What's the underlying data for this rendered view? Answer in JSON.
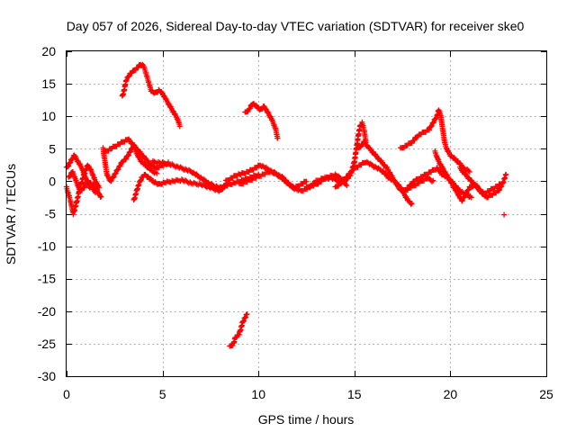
{
  "chart_data": {
    "type": "scatter",
    "title": "Day 057 of 2026, Sidereal Day-to-day VTEC variation (SDTVAR) for receiver ske0",
    "xlabel": "GPS time / hours",
    "ylabel": "SDTVAR / TECUs",
    "xlim": [
      0,
      25
    ],
    "ylim": [
      -30,
      20
    ],
    "xticks": [
      0,
      5,
      10,
      15,
      20,
      25
    ],
    "yticks": [
      -30,
      -25,
      -20,
      -15,
      -10,
      -5,
      0,
      5,
      10,
      15,
      20
    ],
    "xtick_labels": [
      "0",
      "5",
      "10",
      "15",
      "20",
      "25"
    ],
    "ytick_labels": [
      "-30",
      "-25",
      "-20",
      "-15",
      "-10",
      "-5",
      "0",
      "5",
      "10",
      "15",
      "20"
    ],
    "grid": true,
    "marker": "+",
    "color": "#ff0000",
    "series": [
      {
        "name": "SDTVAR",
        "tracks": [
          [
            [
              0.0,
              2.0
            ],
            [
              0.2,
              3.0
            ],
            [
              0.4,
              4.0
            ],
            [
              0.6,
              3.0
            ],
            [
              0.8,
              2.0
            ],
            [
              1.0,
              0.5
            ],
            [
              1.2,
              -1.0
            ],
            [
              1.4,
              -0.5
            ],
            [
              1.6,
              -1.5
            ],
            [
              1.8,
              -2.5
            ]
          ],
          [
            [
              0.0,
              -1.0
            ],
            [
              0.2,
              -3.0
            ],
            [
              0.35,
              -5.0
            ],
            [
              0.5,
              -3.5
            ],
            [
              0.7,
              -1.0
            ],
            [
              0.9,
              1.0
            ],
            [
              1.1,
              2.5
            ],
            [
              1.3,
              1.5
            ],
            [
              1.5,
              0.0
            ],
            [
              1.7,
              -1.0
            ]
          ],
          [
            [
              0.1,
              0.5
            ],
            [
              0.3,
              1.5
            ],
            [
              0.5,
              0.0
            ],
            [
              0.7,
              -1.5
            ],
            [
              0.9,
              -1.0
            ],
            [
              1.1,
              0.0
            ],
            [
              1.3,
              -0.5
            ],
            [
              1.5,
              -1.8
            ]
          ],
          [
            [
              1.9,
              5.0
            ],
            [
              2.0,
              3.0
            ],
            [
              2.1,
              1.0
            ],
            [
              2.3,
              0.0
            ],
            [
              2.5,
              1.0
            ],
            [
              2.7,
              2.0
            ],
            [
              2.9,
              3.0
            ],
            [
              3.1,
              3.5
            ],
            [
              3.3,
              4.5
            ],
            [
              3.5,
              5.5
            ],
            [
              3.7,
              4.0
            ],
            [
              3.9,
              3.0
            ],
            [
              4.1,
              2.5
            ],
            [
              4.3,
              2.0
            ],
            [
              4.5,
              1.5
            ],
            [
              4.7,
              1.2
            ]
          ],
          [
            [
              2.0,
              4.5
            ],
            [
              2.3,
              5.0
            ],
            [
              2.6,
              5.5
            ],
            [
              2.9,
              6.0
            ],
            [
              3.2,
              6.5
            ],
            [
              3.5,
              5.5
            ],
            [
              3.8,
              4.5
            ],
            [
              4.1,
              3.5
            ],
            [
              4.4,
              2.5
            ],
            [
              4.7,
              2.0
            ],
            [
              5.0,
              2.5
            ],
            [
              5.3,
              2.8
            ]
          ],
          [
            [
              3.5,
              -3.0
            ],
            [
              3.7,
              -1.0
            ],
            [
              3.9,
              0.5
            ],
            [
              4.1,
              1.0
            ],
            [
              4.3,
              0.5
            ],
            [
              4.5,
              0.0
            ],
            [
              4.8,
              -0.5
            ],
            [
              5.1,
              -0.2
            ],
            [
              5.5,
              0.0
            ],
            [
              6.0,
              0.2
            ],
            [
              6.5,
              -0.3
            ],
            [
              7.0,
              -0.5
            ],
            [
              7.5,
              -1.0
            ],
            [
              8.0,
              -1.5
            ],
            [
              8.3,
              -0.5
            ]
          ],
          [
            [
              4.5,
              3.0
            ],
            [
              5.0,
              2.8
            ],
            [
              5.5,
              2.5
            ],
            [
              6.0,
              2.0
            ],
            [
              6.5,
              1.5
            ],
            [
              7.0,
              0.5
            ],
            [
              7.5,
              -0.5
            ],
            [
              8.0,
              -1.0
            ],
            [
              8.5,
              -0.5
            ],
            [
              9.0,
              0.0
            ],
            [
              9.5,
              0.5
            ],
            [
              10.0,
              1.0
            ]
          ],
          [
            [
              8.3,
              0.0
            ],
            [
              8.6,
              0.5
            ],
            [
              8.9,
              1.0
            ],
            [
              9.2,
              1.2
            ],
            [
              9.5,
              1.5
            ],
            [
              9.8,
              2.0
            ],
            [
              10.1,
              2.5
            ],
            [
              10.4,
              2.0
            ],
            [
              10.7,
              1.5
            ],
            [
              11.0,
              1.0
            ],
            [
              11.3,
              0.5
            ],
            [
              11.6,
              -0.5
            ],
            [
              11.9,
              -1.0
            ],
            [
              12.2,
              -0.5
            ],
            [
              12.5,
              0.0
            ]
          ],
          [
            [
              9.0,
              -0.5
            ],
            [
              9.4,
              0.0
            ],
            [
              9.8,
              0.5
            ],
            [
              10.2,
              1.0
            ],
            [
              10.6,
              1.5
            ],
            [
              11.0,
              1.0
            ],
            [
              11.4,
              0.0
            ],
            [
              11.8,
              -1.0
            ],
            [
              12.2,
              -1.5
            ],
            [
              12.6,
              -1.0
            ],
            [
              13.0,
              0.0
            ],
            [
              13.4,
              0.5
            ],
            [
              13.8,
              0.5
            ],
            [
              14.2,
              0.0
            ],
            [
              14.6,
              -0.5
            ]
          ],
          [
            [
              12.5,
              -1.0
            ],
            [
              13.0,
              -0.5
            ],
            [
              13.5,
              0.5
            ],
            [
              14.0,
              1.0
            ],
            [
              14.5,
              0.0
            ],
            [
              14.8,
              1.0
            ],
            [
              15.0,
              3.0
            ],
            [
              15.1,
              5.0
            ],
            [
              15.2,
              7.0
            ],
            [
              15.3,
              8.5
            ],
            [
              15.4,
              9.0
            ],
            [
              15.5,
              8.0
            ],
            [
              15.6,
              6.0
            ]
          ],
          [
            [
              14.0,
              -1.0
            ],
            [
              14.4,
              0.0
            ],
            [
              14.7,
              1.0
            ],
            [
              15.0,
              2.0
            ],
            [
              15.3,
              2.5
            ],
            [
              15.6,
              3.0
            ],
            [
              15.9,
              2.5
            ],
            [
              16.2,
              2.0
            ],
            [
              16.5,
              1.5
            ],
            [
              16.8,
              0.5
            ],
            [
              17.1,
              0.0
            ],
            [
              17.4,
              -1.0
            ],
            [
              17.6,
              -2.0
            ],
            [
              17.8,
              -3.0
            ],
            [
              18.0,
              -3.5
            ]
          ],
          [
            [
              15.2,
              5.0
            ],
            [
              15.5,
              6.0
            ],
            [
              15.8,
              5.0
            ],
            [
              16.1,
              4.0
            ],
            [
              16.4,
              3.0
            ],
            [
              16.7,
              2.0
            ],
            [
              17.0,
              0.5
            ],
            [
              17.3,
              -1.0
            ],
            [
              17.6,
              -1.5
            ],
            [
              17.9,
              -1.0
            ],
            [
              18.2,
              -0.5
            ],
            [
              18.5,
              0.0
            ],
            [
              18.8,
              0.5
            ],
            [
              19.1,
              0.0
            ]
          ],
          [
            [
              17.4,
              5.0
            ],
            [
              17.7,
              5.5
            ],
            [
              18.0,
              6.0
            ],
            [
              18.3,
              7.0
            ],
            [
              18.6,
              7.5
            ],
            [
              18.9,
              8.0
            ],
            [
              19.1,
              9.0
            ],
            [
              19.3,
              10.0
            ],
            [
              19.4,
              11.0
            ],
            [
              19.5,
              10.0
            ],
            [
              19.6,
              8.0
            ],
            [
              19.7,
              6.0
            ],
            [
              19.8,
              5.0
            ],
            [
              20.0,
              4.0
            ],
            [
              20.2,
              3.5
            ],
            [
              20.4,
              3.0
            ],
            [
              20.7,
              2.0
            ],
            [
              21.0,
              1.5
            ]
          ],
          [
            [
              17.5,
              -1.5
            ],
            [
              17.8,
              -1.0
            ],
            [
              18.1,
              0.0
            ],
            [
              18.4,
              0.5
            ],
            [
              18.7,
              1.0
            ],
            [
              19.0,
              1.5
            ],
            [
              19.3,
              2.0
            ],
            [
              19.6,
              1.0
            ],
            [
              19.9,
              0.5
            ],
            [
              20.2,
              -0.5
            ],
            [
              20.5,
              -1.5
            ],
            [
              20.8,
              -2.0
            ],
            [
              21.1,
              -2.5
            ]
          ],
          [
            [
              19.2,
              4.5
            ],
            [
              19.4,
              3.0
            ],
            [
              19.6,
              2.0
            ],
            [
              19.8,
              1.0
            ],
            [
              20.0,
              0.0
            ],
            [
              20.2,
              -1.0
            ],
            [
              20.4,
              -2.0
            ],
            [
              20.6,
              -3.0
            ],
            [
              20.8,
              -2.0
            ],
            [
              21.0,
              -1.0
            ],
            [
              21.3,
              -0.5
            ],
            [
              21.6,
              -1.5
            ],
            [
              21.9,
              -2.5
            ],
            [
              22.2,
              -2.0
            ],
            [
              22.5,
              -1.5
            ],
            [
              22.7,
              -0.5
            ],
            [
              22.9,
              1.0
            ]
          ],
          [
            [
              20.5,
              2.0
            ],
            [
              20.8,
              1.0
            ],
            [
              21.1,
              0.0
            ],
            [
              21.4,
              -1.0
            ],
            [
              21.7,
              -2.0
            ],
            [
              22.0,
              -1.5
            ],
            [
              22.3,
              -1.0
            ],
            [
              22.6,
              -0.5
            ]
          ],
          [
            [
              22.8,
              -5.3
            ]
          ]
        ]
      },
      {
        "name": "SDTVAR-high",
        "tracks": [
          [
            [
              2.9,
              13.0
            ],
            [
              3.0,
              14.0
            ],
            [
              3.1,
              15.5
            ],
            [
              3.2,
              16.0
            ],
            [
              3.3,
              16.5
            ],
            [
              3.5,
              17.0
            ],
            [
              3.7,
              17.5
            ],
            [
              3.85,
              18.0
            ],
            [
              4.0,
              17.8
            ],
            [
              4.1,
              17.0
            ],
            [
              4.2,
              16.0
            ],
            [
              4.3,
              15.0
            ],
            [
              4.4,
              14.0
            ],
            [
              4.6,
              13.5
            ],
            [
              4.8,
              14.0
            ],
            [
              5.0,
              13.5
            ],
            [
              5.2,
              12.5
            ],
            [
              5.4,
              11.5
            ],
            [
              5.6,
              10.5
            ],
            [
              5.8,
              9.5
            ],
            [
              5.9,
              8.5
            ]
          ],
          [
            [
              9.3,
              10.5
            ],
            [
              9.5,
              11.0
            ],
            [
              9.7,
              12.0
            ],
            [
              9.9,
              11.5
            ],
            [
              10.1,
              11.0
            ],
            [
              10.3,
              11.5
            ],
            [
              10.5,
              10.5
            ],
            [
              10.7,
              9.5
            ],
            [
              10.9,
              8.0
            ],
            [
              11.0,
              6.5
            ]
          ],
          [
            [
              8.5,
              -25.5
            ],
            [
              8.7,
              -25.0
            ],
            [
              8.8,
              -24.0
            ],
            [
              9.0,
              -23.5
            ],
            [
              9.1,
              -22.5
            ],
            [
              9.2,
              -21.5
            ],
            [
              9.4,
              -20.5
            ]
          ]
        ]
      }
    ]
  }
}
